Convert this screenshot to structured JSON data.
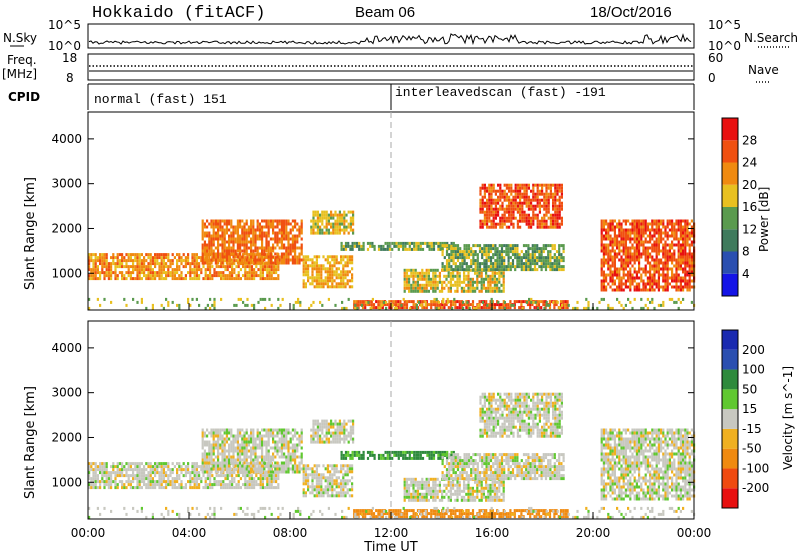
{
  "header": {
    "station": "Hokkaido (fitACF)",
    "beam": "Beam 06",
    "date": "18/Oct/2016"
  },
  "top_panels": {
    "nsky_label": "N.Sky",
    "nsearch_label": "N.Search",
    "noise_ticks_left": [
      "10^5",
      "10^0"
    ],
    "noise_ticks_right": [
      "10^5",
      "10^0"
    ],
    "freq_label": "Freq.",
    "freq_unit": "[MHz]",
    "freq_ticks": [
      "18",
      "8"
    ],
    "nave_label": "Nave",
    "nave_ticks": [
      "60",
      "0"
    ],
    "cpid_label": "CPID",
    "cpid_segments": [
      {
        "name": "normal (fast) 151",
        "start_hour": 0,
        "end_hour": 12
      },
      {
        "name": "interleavedscan (fast) -191",
        "start_hour": 12,
        "end_hour": 24
      }
    ]
  },
  "colorbars": {
    "power": {
      "label": "Power [dB]",
      "ticks": [
        "4",
        "8",
        "12",
        "16",
        "20",
        "24",
        "28"
      ],
      "tick_values": [
        4,
        8,
        12,
        16,
        20,
        24,
        28
      ],
      "range": [
        0,
        32
      ],
      "colors": [
        "#1414e6",
        "#2a4fb0",
        "#3f7a5c",
        "#5a9a4e",
        "#e8c020",
        "#f08a10",
        "#f05010",
        "#e81010"
      ]
    },
    "velocity": {
      "label": "Velocity [m s^-1]",
      "ticks": [
        "-200",
        "-100",
        "-50",
        "-15",
        "15",
        "50",
        "100",
        "200"
      ],
      "colors": [
        "#e81010",
        "#f04a10",
        "#f08a10",
        "#f0b020",
        "#c8c8c0",
        "#60c830",
        "#2e8a3c",
        "#2a4fb0",
        "#1a2ab0"
      ]
    }
  },
  "chart_data": [
    {
      "type": "heatmap",
      "title": "Hokkaido (fitACF) Beam 06 18/Oct/2016",
      "panel": "power",
      "xlabel": "",
      "ylabel": "Slant Range [km]",
      "xlim": [
        "00:00",
        "24:00"
      ],
      "ylim": [
        180,
        4600
      ],
      "yticks": [
        1000,
        2000,
        3000,
        4000
      ],
      "x_ticks": [
        "00:00",
        "04:00",
        "08:00",
        "12:00",
        "16:00",
        "20:00",
        "00:00"
      ],
      "colorbar": "Power [dB]",
      "echo_regions": [
        {
          "t0": 0.0,
          "t1": 7.5,
          "r0": 850,
          "r1": 1450,
          "value": 22
        },
        {
          "t0": 4.5,
          "t1": 8.5,
          "r0": 1200,
          "r1": 2200,
          "value": 24
        },
        {
          "t0": 8.5,
          "t1": 10.5,
          "r0": 700,
          "r1": 1400,
          "value": 20
        },
        {
          "t0": 8.8,
          "t1": 10.5,
          "r0": 1900,
          "r1": 2400,
          "value": 18
        },
        {
          "t0": 10.0,
          "t1": 14.5,
          "r0": 1550,
          "r1": 1700,
          "value": 14
        },
        {
          "t0": 12.5,
          "t1": 16.5,
          "r0": 600,
          "r1": 1100,
          "value": 18
        },
        {
          "t0": 14.0,
          "t1": 18.8,
          "r0": 1050,
          "r1": 1650,
          "value": 14
        },
        {
          "t0": 15.5,
          "t1": 18.8,
          "r0": 2000,
          "r1": 3000,
          "value": 26
        },
        {
          "t0": 20.3,
          "t1": 24.0,
          "r0": 600,
          "r1": 2200,
          "value": 26
        },
        {
          "t0": 10.5,
          "t1": 19.0,
          "r0": 200,
          "r1": 400,
          "value": 26
        },
        {
          "t0": 0.0,
          "t1": 24.0,
          "r0": 200,
          "r1": 450,
          "value": 16
        }
      ]
    },
    {
      "type": "heatmap",
      "panel": "velocity",
      "xlabel": "Time UT",
      "ylabel": "Slant Range [km]",
      "xlim": [
        "00:00",
        "24:00"
      ],
      "ylim": [
        180,
        4600
      ],
      "yticks": [
        1000,
        2000,
        3000,
        4000
      ],
      "x_ticks": [
        "00:00",
        "04:00",
        "08:00",
        "12:00",
        "16:00",
        "20:00",
        "00:00"
      ],
      "colorbar": "Velocity [m s^-1]",
      "echo_regions": [
        {
          "t0": 0.0,
          "t1": 7.5,
          "r0": 850,
          "r1": 1450,
          "value": 0
        },
        {
          "t0": 4.5,
          "t1": 8.5,
          "r0": 1200,
          "r1": 2200,
          "value": 0
        },
        {
          "t0": 8.5,
          "t1": 10.5,
          "r0": 700,
          "r1": 1400,
          "value": 0
        },
        {
          "t0": 8.8,
          "t1": 10.5,
          "r0": 1900,
          "r1": 2400,
          "value": 0
        },
        {
          "t0": 10.0,
          "t1": 14.5,
          "r0": 1550,
          "r1": 1700,
          "value": 40
        },
        {
          "t0": 12.5,
          "t1": 16.5,
          "r0": 600,
          "r1": 1100,
          "value": 0
        },
        {
          "t0": 14.0,
          "t1": 18.8,
          "r0": 1050,
          "r1": 1650,
          "value": 0
        },
        {
          "t0": 15.5,
          "t1": 18.8,
          "r0": 2000,
          "r1": 3000,
          "value": 0
        },
        {
          "t0": 20.3,
          "t1": 24.0,
          "r0": 600,
          "r1": 2200,
          "value": 0
        },
        {
          "t0": 10.5,
          "t1": 19.0,
          "r0": 200,
          "r1": 400,
          "value": -60
        },
        {
          "t0": 0.0,
          "t1": 24.0,
          "r0": 200,
          "r1": 450,
          "value": 0
        }
      ]
    }
  ]
}
